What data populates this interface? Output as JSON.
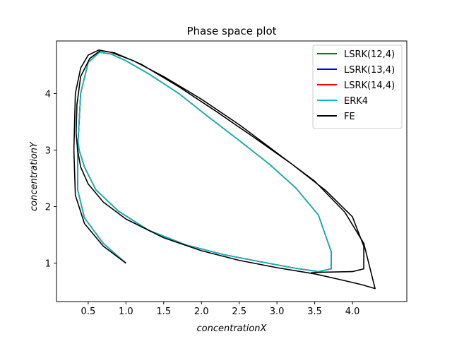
{
  "chart_data": {
    "type": "line",
    "title": "Phase space plot",
    "xlabel": "concentrationX",
    "ylabel": "concentrationY",
    "xlim": [
      0.08,
      4.72
    ],
    "ylim": [
      0.32,
      4.93
    ],
    "xticks": [
      0.5,
      1.0,
      1.5,
      2.0,
      2.5,
      3.0,
      3.5,
      4.0
    ],
    "xtick_labels": [
      "0.5",
      "1.0",
      "1.5",
      "2.0",
      "2.5",
      "3.0",
      "3.5",
      "4.0"
    ],
    "yticks": [
      1,
      2,
      3,
      4
    ],
    "ytick_labels": [
      "1",
      "2",
      "3",
      "4"
    ],
    "grid": false,
    "legend_position": "top-right",
    "series": [
      {
        "name": "LSRK(12,4)",
        "color": "#008000",
        "x": [
          1.0,
          0.7,
          0.45,
          0.36,
          0.36,
          0.4,
          0.5,
          0.65,
          0.8,
          1.0,
          1.3,
          1.7,
          2.1,
          2.5,
          2.9,
          3.25,
          3.55,
          3.72,
          3.72,
          3.55,
          3.2,
          2.8,
          2.3,
          1.8,
          1.3,
          0.9,
          0.6,
          0.45,
          0.38,
          0.36
        ],
        "y": [
          1.0,
          1.35,
          1.8,
          2.3,
          3.0,
          4.0,
          4.55,
          4.73,
          4.7,
          4.58,
          4.35,
          4.0,
          3.58,
          3.17,
          2.75,
          2.33,
          1.85,
          1.2,
          0.9,
          0.85,
          0.92,
          1.02,
          1.15,
          1.32,
          1.58,
          1.92,
          2.3,
          2.7,
          3.0,
          3.2
        ]
      },
      {
        "name": "LSRK(13,4)",
        "color": "#0000ff",
        "x": [
          1.0,
          0.7,
          0.45,
          0.36,
          0.36,
          0.4,
          0.5,
          0.65,
          0.8,
          1.0,
          1.3,
          1.7,
          2.1,
          2.5,
          2.9,
          3.25,
          3.55,
          3.72,
          3.72,
          3.55,
          3.2,
          2.8,
          2.3,
          1.8,
          1.3,
          0.9,
          0.6,
          0.45,
          0.38,
          0.36
        ],
        "y": [
          1.0,
          1.35,
          1.8,
          2.3,
          3.0,
          4.0,
          4.55,
          4.73,
          4.7,
          4.58,
          4.35,
          4.0,
          3.58,
          3.17,
          2.75,
          2.33,
          1.85,
          1.2,
          0.9,
          0.85,
          0.92,
          1.02,
          1.15,
          1.32,
          1.58,
          1.92,
          2.3,
          2.7,
          3.0,
          3.2
        ]
      },
      {
        "name": "LSRK(14,4)",
        "color": "#ff0000",
        "x": [
          1.0,
          0.7,
          0.45,
          0.36,
          0.36,
          0.4,
          0.5,
          0.65,
          0.8,
          1.0,
          1.3,
          1.7,
          2.1,
          2.5,
          2.9,
          3.25,
          3.55,
          3.72,
          3.72,
          3.55,
          3.2,
          2.8,
          2.3,
          1.8,
          1.3,
          0.9,
          0.6,
          0.45,
          0.38,
          0.36
        ],
        "y": [
          1.0,
          1.35,
          1.8,
          2.3,
          3.0,
          4.0,
          4.55,
          4.73,
          4.7,
          4.58,
          4.35,
          4.0,
          3.58,
          3.17,
          2.75,
          2.33,
          1.85,
          1.2,
          0.9,
          0.85,
          0.92,
          1.02,
          1.15,
          1.32,
          1.58,
          1.92,
          2.3,
          2.7,
          3.0,
          3.2
        ]
      },
      {
        "name": "ERK4",
        "color": "#00bfbf",
        "x": [
          1.0,
          0.7,
          0.45,
          0.36,
          0.36,
          0.4,
          0.5,
          0.65,
          0.8,
          1.0,
          1.3,
          1.7,
          2.1,
          2.5,
          2.9,
          3.25,
          3.55,
          3.72,
          3.72,
          3.55,
          3.2,
          2.8,
          2.3,
          1.8,
          1.3,
          0.9,
          0.6,
          0.45,
          0.38,
          0.36
        ],
        "y": [
          1.0,
          1.35,
          1.8,
          2.3,
          3.0,
          4.0,
          4.55,
          4.73,
          4.7,
          4.58,
          4.35,
          4.0,
          3.58,
          3.17,
          2.75,
          2.33,
          1.85,
          1.2,
          0.9,
          0.85,
          0.92,
          1.02,
          1.15,
          1.32,
          1.58,
          1.92,
          2.3,
          2.7,
          3.0,
          3.2
        ]
      },
      {
        "name": "FE",
        "color": "#000000",
        "x": [
          1.0,
          0.7,
          0.45,
          0.33,
          0.31,
          0.33,
          0.4,
          0.5,
          0.64,
          0.8,
          1.1,
          1.5,
          2.0,
          2.5,
          3.0,
          3.5,
          3.9,
          4.15,
          4.3,
          4.12,
          3.8,
          3.5,
          3.0,
          2.5,
          2.0,
          1.5,
          1.0,
          0.7,
          0.5,
          0.4,
          0.36,
          0.34,
          0.35,
          0.4,
          0.52,
          0.66,
          0.85,
          1.2,
          1.7,
          2.2,
          2.7,
          3.2,
          3.65,
          4.0,
          4.15,
          4.15,
          4.0,
          3.6,
          3.45
        ],
        "y": [
          1.0,
          1.3,
          1.7,
          2.2,
          3.0,
          4.0,
          4.45,
          4.68,
          4.77,
          4.73,
          4.58,
          4.3,
          3.9,
          3.45,
          2.95,
          2.45,
          1.9,
          1.35,
          0.55,
          0.62,
          0.72,
          0.81,
          0.92,
          1.05,
          1.22,
          1.45,
          1.78,
          2.08,
          2.4,
          2.7,
          3.0,
          3.3,
          3.8,
          4.3,
          4.62,
          4.76,
          4.72,
          4.52,
          4.12,
          3.68,
          3.22,
          2.75,
          2.28,
          1.82,
          1.3,
          0.9,
          0.85,
          0.84,
          0.83
        ]
      }
    ]
  }
}
